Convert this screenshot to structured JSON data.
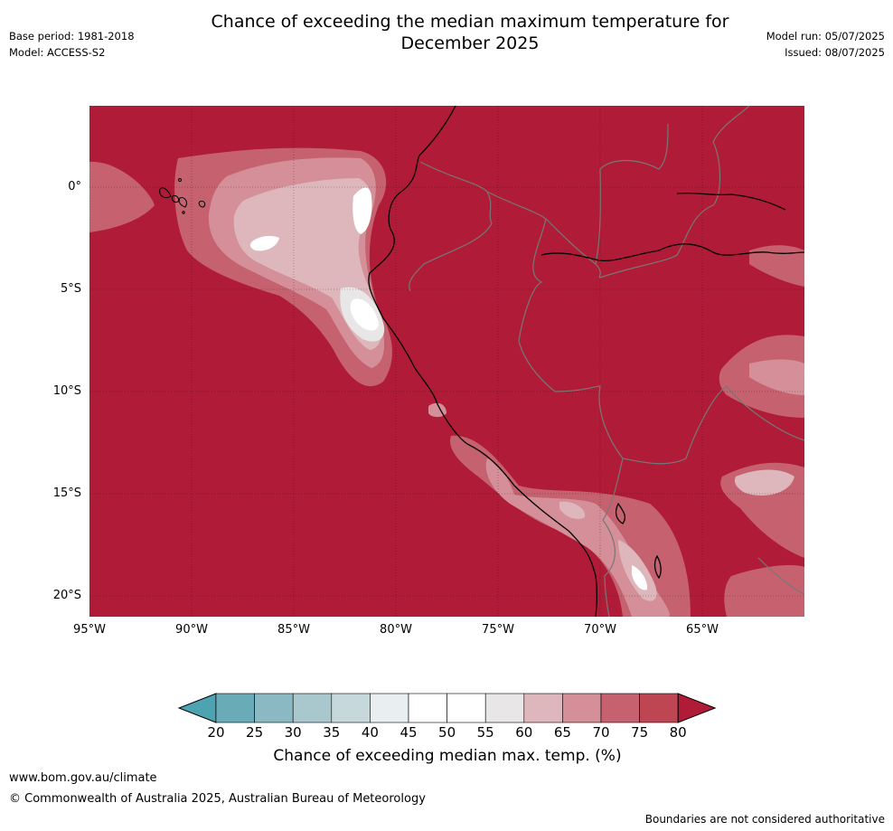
{
  "title": "Chance of exceeding the median maximum temperature for\nDecember 2025",
  "meta": {
    "base_period": "Base period: 1981-2018",
    "model": "Model: ACCESS-S2",
    "model_run": "Model run: 05/07/2025",
    "issued": "Issued: 08/07/2025"
  },
  "map": {
    "lat_labels": [
      "0°",
      "5°S",
      "10°S",
      "15°S",
      "20°S"
    ],
    "lon_labels": [
      "95°W",
      "90°W",
      "85°W",
      "80°W",
      "75°W",
      "70°W",
      "65°W"
    ]
  },
  "colorbar": {
    "ticks": [
      "20",
      "25",
      "30",
      "35",
      "40",
      "45",
      "50",
      "55",
      "60",
      "65",
      "70",
      "75",
      "80"
    ],
    "colors": [
      "#4ea3b2",
      "#6aabb8",
      "#8ab8c3",
      "#a9c8ce",
      "#c7d8dc",
      "#e9eef0",
      "#ffffff",
      "#ffffff",
      "#e8e6e6",
      "#ddb7bc",
      "#d48f98",
      "#c6626f",
      "#bd4652",
      "#b01c38"
    ],
    "label": "Chance of exceeding median max. temp. (%)"
  },
  "footer": {
    "url": "www.bom.gov.au/climate",
    "copyright": "© Commonwealth of Australia 2025, Australian Bureau of Meteorology",
    "note": "Boundaries are not considered authoritative"
  }
}
